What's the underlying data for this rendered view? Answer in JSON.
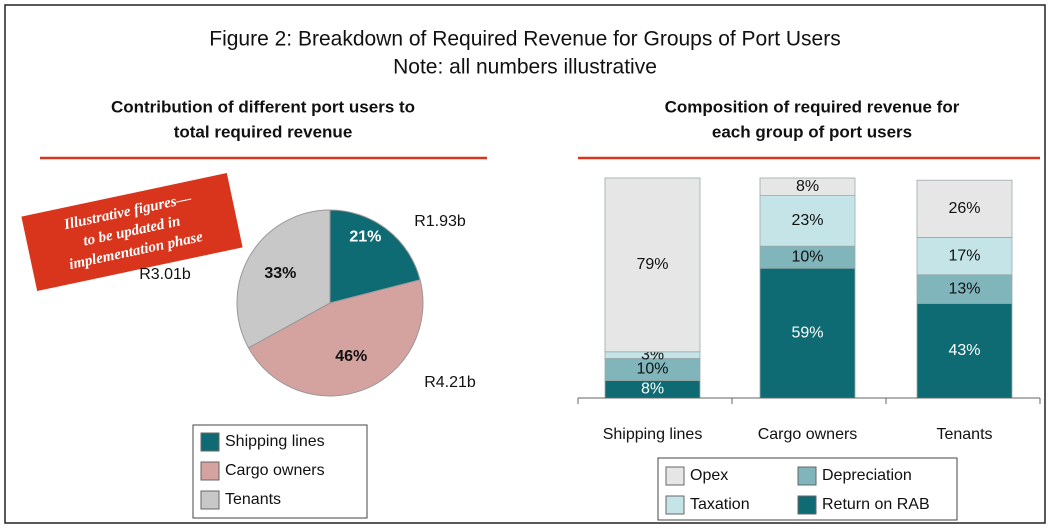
{
  "title": "Figure 2: Breakdown of Required Revenue for Groups of Port Users",
  "subtitle": "Note: all numbers illustrative",
  "chart_data": [
    {
      "type": "pie",
      "title_lines": [
        "Contribution of different port users to",
        "total required revenue"
      ],
      "annotation_lines": [
        "Illustrative figures—",
        "to be updated in",
        "implementation phase"
      ],
      "categories": [
        "Shipping lines",
        "Cargo owners",
        "Tenants"
      ],
      "values": [
        21,
        46,
        33
      ],
      "value_labels": [
        "21%",
        "46%",
        "33%"
      ],
      "amount_labels": [
        "R1.93b",
        "R4.21b",
        "R3.01b"
      ],
      "colors": [
        "#0e6b73",
        "#d4a3a0",
        "#c8c8c8"
      ]
    },
    {
      "type": "stacked_bar",
      "title_lines": [
        "Composition of required revenue for",
        "each group of port users"
      ],
      "categories": [
        "Shipping lines",
        "Cargo owners",
        "Tenants"
      ],
      "ylim": [
        0,
        100
      ],
      "series": [
        {
          "name": "Return on RAB",
          "color": "#0e6b73",
          "values": [
            8,
            59,
            43
          ],
          "value_labels": [
            "8%",
            "59%",
            "43%"
          ]
        },
        {
          "name": "Depreciation",
          "color": "#7fb5bb",
          "values": [
            10,
            10,
            13
          ],
          "value_labels": [
            "10%",
            "10%",
            "13%"
          ]
        },
        {
          "name": "Taxation",
          "color": "#c5e4e8",
          "values": [
            3,
            23,
            17
          ],
          "value_labels": [
            "3%",
            "23%",
            "17%"
          ]
        },
        {
          "name": "Opex",
          "color": "#e6e6e6",
          "values": [
            79,
            8,
            26
          ],
          "value_labels": [
            "79%",
            "8%",
            "26%"
          ]
        }
      ]
    }
  ]
}
